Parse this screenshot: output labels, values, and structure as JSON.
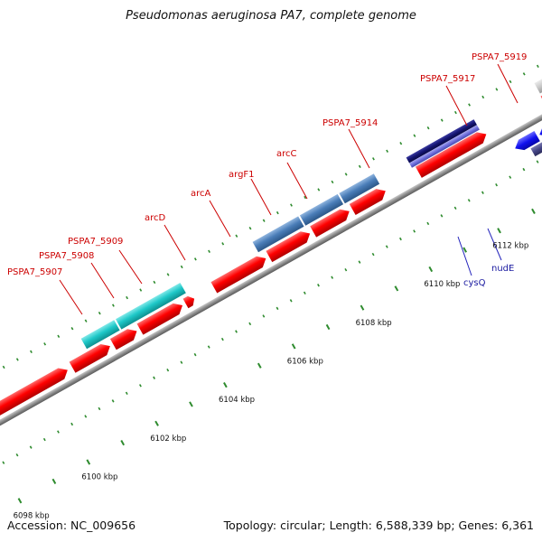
{
  "title": "Pseudomonas aeruginosa PA7, complete genome",
  "footer": {
    "accession": "Accession: NC_009656",
    "summary": "Topology: circular; Length: 6,588,339 bp; Genes: 6,361"
  },
  "colors": {
    "backbone": "#8c8c8c",
    "tick": "#2e8b2e",
    "cds": "#ff0000",
    "gene_label": "#cc0000",
    "named_label": "#1a1aa0",
    "leader": "#cc0000",
    "leader_blue": "#2222bb"
  },
  "scale_ticks": [
    {
      "kbp": 6098,
      "label": "6098 kbp"
    },
    {
      "kbp": 6100,
      "label": "6100 kbp"
    },
    {
      "kbp": 6102,
      "label": "6102 kbp"
    },
    {
      "kbp": 6104,
      "label": "6104 kbp"
    },
    {
      "kbp": 6106,
      "label": "6106 kbp"
    },
    {
      "kbp": 6108,
      "label": "6108 kbp"
    },
    {
      "kbp": 6110,
      "label": "6110 kbp"
    },
    {
      "kbp": 6112,
      "label": "6112 kbp"
    }
  ],
  "gene_labels": [
    {
      "text": "PSPA7_5907",
      "color": "#cc0000"
    },
    {
      "text": "PSPA7_5908",
      "color": "#cc0000"
    },
    {
      "text": "PSPA7_5909",
      "color": "#cc0000"
    },
    {
      "text": "arcD",
      "color": "#cc0000"
    },
    {
      "text": "arcA",
      "color": "#cc0000"
    },
    {
      "text": "argF1",
      "color": "#cc0000"
    },
    {
      "text": "arcC",
      "color": "#cc0000"
    },
    {
      "text": "PSPA7_5914",
      "color": "#cc0000"
    },
    {
      "text": "PSPA7_5917",
      "color": "#cc0000"
    },
    {
      "text": "PSPA7_5919",
      "color": "#cc0000"
    },
    {
      "text": "cysQ",
      "color": "#1a1aa0"
    },
    {
      "text": "nudE",
      "color": "#1a1aa0"
    }
  ],
  "feature_colors": {
    "cds": "#ff0000",
    "cyan": "#1ec8c8",
    "steel_blue": "#4a7db8",
    "navy": "#141470",
    "violet": "#7070dd",
    "blue": "#1010ee",
    "slate": "#454585",
    "light_gray": "#c8c8c8",
    "dark_gray": "#606060"
  }
}
